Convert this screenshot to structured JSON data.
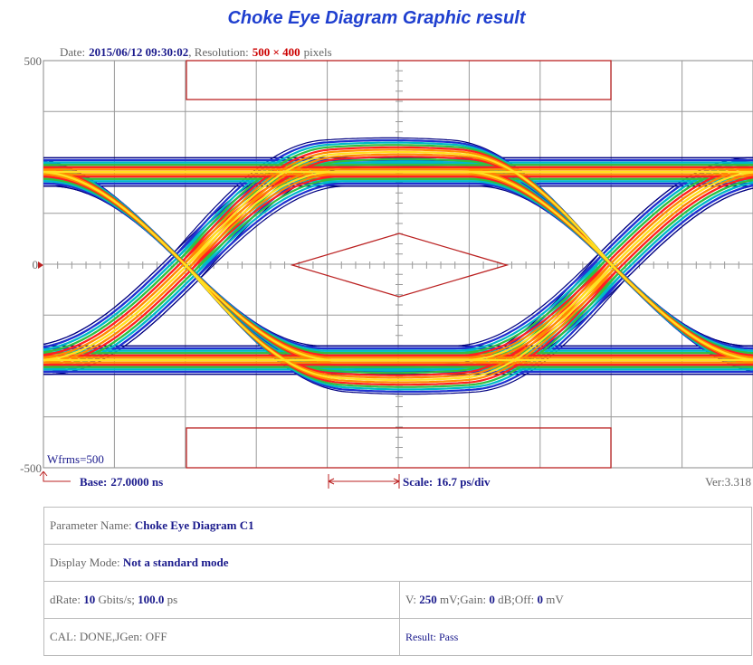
{
  "title": "Choke Eye Diagram Graphic result",
  "header": {
    "date_label": "Date:",
    "date": "2015/06/12 09:30:02",
    "resolution_label": ", Resolution:",
    "resolution": "500 × 400",
    "resolution_unit": "pixels"
  },
  "axis_labels": {
    "top": "500",
    "middle": "0",
    "bottom": "-500"
  },
  "waveforms": "Wfrms=500",
  "footer": {
    "base_label": "Base:",
    "base": "27.0000 ns",
    "scale_label": "Scale:",
    "scale": "16.7 ps/div",
    "version": "Ver:3.318"
  },
  "table": {
    "parameter_name": {
      "label": "Parameter Name:",
      "value": "Choke Eye Diagram C1"
    },
    "display_mode": {
      "label": "Display Mode:",
      "value": "Not a standard mode"
    },
    "drate": {
      "label": "dRate:",
      "rate": "10",
      "rate_unit": "Gbits/s;",
      "period": "100.0",
      "period_unit": "ps"
    },
    "voltage": {
      "label": "V:",
      "v": "250",
      "v_unit": "mV;Gain:",
      "gain": "0",
      "gain_unit": "dB;Off:",
      "off": "0",
      "off_unit": "mV"
    },
    "cal": "CAL: DONE,JGen: OFF",
    "result": "Result: Pass"
  }
}
